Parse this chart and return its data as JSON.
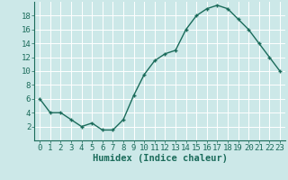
{
  "xlabel": "Humidex (Indice chaleur)",
  "x": [
    0,
    1,
    2,
    3,
    4,
    5,
    6,
    7,
    8,
    9,
    10,
    11,
    12,
    13,
    14,
    15,
    16,
    17,
    18,
    19,
    20,
    21,
    22,
    23
  ],
  "y": [
    6,
    4,
    4,
    3,
    2,
    2.5,
    1.5,
    1.5,
    3,
    6.5,
    9.5,
    11.5,
    12.5,
    13,
    16,
    18,
    19,
    19.5,
    19,
    17.5,
    16,
    14,
    12,
    10
  ],
  "xlim": [
    -0.5,
    23.5
  ],
  "ylim": [
    0,
    20
  ],
  "yticks": [
    2,
    4,
    6,
    8,
    10,
    12,
    14,
    16,
    18
  ],
  "xticks": [
    0,
    1,
    2,
    3,
    4,
    5,
    6,
    7,
    8,
    9,
    10,
    11,
    12,
    13,
    14,
    15,
    16,
    17,
    18,
    19,
    20,
    21,
    22,
    23
  ],
  "line_color": "#1a6b5a",
  "marker": "+",
  "marker_size": 3.5,
  "marker_linewidth": 1.0,
  "line_width": 1.0,
  "background_color": "#cce8e8",
  "grid_color": "#ffffff",
  "tick_label_color": "#1a6b5a",
  "xlabel_color": "#1a6b5a",
  "xlabel_fontsize": 7.5,
  "tick_fontsize": 6.5,
  "spine_color": "#1a6b5a"
}
